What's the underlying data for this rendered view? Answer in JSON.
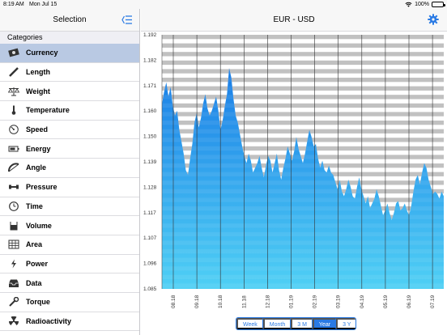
{
  "status": {
    "time": "8:19 AM",
    "date": "Mon Jul 15",
    "battery": "100%"
  },
  "sidebar": {
    "title": "Selection",
    "section": "Categories",
    "items": [
      {
        "label": "Currency",
        "icon": "currency-icon",
        "selected": true
      },
      {
        "label": "Length",
        "icon": "ruler-icon"
      },
      {
        "label": "Weight",
        "icon": "scale-icon"
      },
      {
        "label": "Temperature",
        "icon": "thermometer-icon"
      },
      {
        "label": "Speed",
        "icon": "speedometer-icon"
      },
      {
        "label": "Energy",
        "icon": "battery-icon"
      },
      {
        "label": "Angle",
        "icon": "angle-icon"
      },
      {
        "label": "Pressure",
        "icon": "pressure-icon"
      },
      {
        "label": "Time",
        "icon": "clock-icon"
      },
      {
        "label": "Volume",
        "icon": "beaker-icon"
      },
      {
        "label": "Area",
        "icon": "grid-icon"
      },
      {
        "label": "Power",
        "icon": "lightning-icon"
      },
      {
        "label": "Data",
        "icon": "inbox-icon"
      },
      {
        "label": "Torque",
        "icon": "wrench-icon"
      },
      {
        "label": "Radioactivity",
        "icon": "radiation-icon"
      }
    ]
  },
  "main": {
    "title": "EUR - USD",
    "ranges": [
      {
        "label": "Week"
      },
      {
        "label": "Month"
      },
      {
        "label": "3 M"
      },
      {
        "label": "Year",
        "active": true
      },
      {
        "label": "3 Y"
      }
    ]
  },
  "chart_data": {
    "type": "area",
    "title": "",
    "ylim": [
      1.085,
      1.192
    ],
    "y_ticks": [
      "1.192",
      "1.182",
      "1.171",
      "1.160",
      "1.150",
      "1.139",
      "1.128",
      "1.117",
      "1.107",
      "1.096",
      "1.085"
    ],
    "x_ticks": [
      "08.18",
      "09.18",
      "10.18",
      "11.18",
      "12.18",
      "01.19",
      "02.19",
      "03.19",
      "04.19",
      "05.19",
      "06.19",
      "07.19"
    ],
    "colors": {
      "fill_top": "#1a7de6",
      "fill_bottom": "#4fd0f5",
      "stripe": "#bdbdbd"
    },
    "values": [
      1.163,
      1.168,
      1.172,
      1.166,
      1.17,
      1.162,
      1.158,
      1.16,
      1.152,
      1.147,
      1.142,
      1.135,
      1.133,
      1.14,
      1.146,
      1.155,
      1.159,
      1.153,
      1.157,
      1.163,
      1.167,
      1.161,
      1.158,
      1.16,
      1.163,
      1.166,
      1.16,
      1.152,
      1.156,
      1.162,
      1.167,
      1.178,
      1.174,
      1.165,
      1.158,
      1.155,
      1.15,
      1.145,
      1.141,
      1.138,
      1.142,
      1.139,
      1.134,
      1.136,
      1.138,
      1.141,
      1.136,
      1.132,
      1.137,
      1.141,
      1.139,
      1.134,
      1.138,
      1.142,
      1.135,
      1.131,
      1.136,
      1.14,
      1.145,
      1.142,
      1.139,
      1.143,
      1.149,
      1.144,
      1.141,
      1.138,
      1.142,
      1.147,
      1.152,
      1.149,
      1.145,
      1.146,
      1.14,
      1.136,
      1.139,
      1.135,
      1.134,
      1.137,
      1.134,
      1.133,
      1.13,
      1.127,
      1.131,
      1.126,
      1.124,
      1.127,
      1.131,
      1.128,
      1.124,
      1.123,
      1.128,
      1.132,
      1.127,
      1.124,
      1.121,
      1.124,
      1.119,
      1.121,
      1.123,
      1.127,
      1.124,
      1.12,
      1.116,
      1.118,
      1.121,
      1.117,
      1.114,
      1.117,
      1.121,
      1.122,
      1.118,
      1.119,
      1.121,
      1.118,
      1.116,
      1.12,
      1.126,
      1.131,
      1.133,
      1.129,
      1.134,
      1.138,
      1.136,
      1.131,
      1.128,
      1.125,
      1.126,
      1.125,
      1.123,
      1.126,
      1.124
    ]
  }
}
